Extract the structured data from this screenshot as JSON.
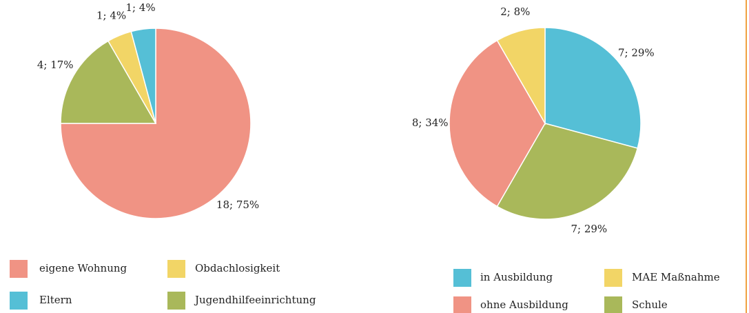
{
  "chart_data": [
    {
      "type": "pie",
      "categories": [
        "eigene Wohnung",
        "Jugendhilfeeinrichtung",
        "Obdachlosigkeit",
        "Eltern"
      ],
      "values": [
        18,
        4,
        1,
        1
      ],
      "value_labels": [
        "18; 75%",
        "4; 17%",
        "1; 4%",
        "1; 4%"
      ],
      "colors": [
        "#f09384",
        "#a9b85a",
        "#f2d566",
        "#55bfd6"
      ],
      "legend": "bottom"
    },
    {
      "type": "pie",
      "categories": [
        "in Ausbildung",
        "Schule",
        "ohne Ausbildung",
        "MAE Maßnahme"
      ],
      "values": [
        7,
        7,
        8,
        2
      ],
      "value_labels": [
        "7; 29%",
        "7; 29%",
        "8; 34%",
        "2; 8%"
      ],
      "colors": [
        "#55bfd6",
        "#a9b85a",
        "#f09384",
        "#f2d566"
      ],
      "legend": "bottom"
    }
  ]
}
